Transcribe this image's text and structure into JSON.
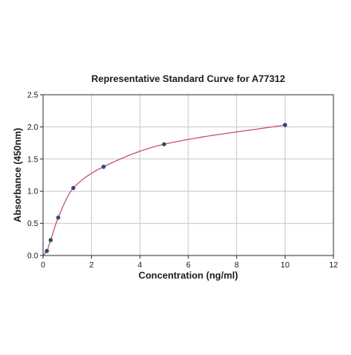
{
  "chart_data": {
    "type": "scatter",
    "title": "Representative Standard Curve for A77312",
    "xlabel": "Concentration (ng/ml)",
    "ylabel": "Absorbance (450nm)",
    "xlim": [
      0,
      12
    ],
    "ylim": [
      0,
      2.5
    ],
    "xticks": [
      "0",
      "2",
      "4",
      "6",
      "8",
      "10",
      "12"
    ],
    "yticks": [
      "0.0",
      "0.5",
      "1.0",
      "1.5",
      "2.0",
      "2.5"
    ],
    "grid": true,
    "legend": "none",
    "series": [
      {
        "points": [
          {
            "x": 0.156,
            "y": 0.07
          },
          {
            "x": 0.313,
            "y": 0.24
          },
          {
            "x": 0.625,
            "y": 0.59
          },
          {
            "x": 1.25,
            "y": 1.05
          },
          {
            "x": 2.5,
            "y": 1.38
          },
          {
            "x": 5.0,
            "y": 1.73
          },
          {
            "x": 10.0,
            "y": 2.03
          }
        ],
        "marker_color": "#2e4a7a"
      }
    ],
    "fit_curve": {
      "x_range": [
        0,
        10
      ],
      "color": "#c0506a"
    }
  }
}
